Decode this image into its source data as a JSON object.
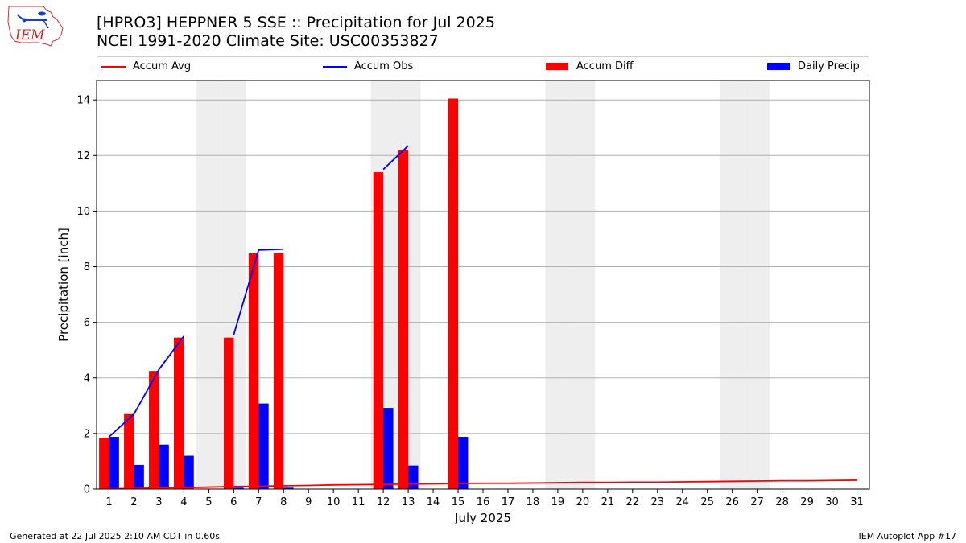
{
  "header": {
    "title_line1": "[HPRO3] HEPPNER 5 SSE :: Precipitation for Jul 2025",
    "title_line2": "NCEI 1991-2020 Climate Site: USC00353827"
  },
  "logo": {
    "text": "IEM"
  },
  "legend": {
    "accum_avg": "Accum Avg",
    "accum_obs": "Accum Obs",
    "accum_diff": "Accum Diff",
    "daily_precip": "Daily Precip"
  },
  "footer": {
    "generated": "Generated at 22 Jul 2025 2:10 AM CDT in 0.60s",
    "app": "IEM Autoplot App #17"
  },
  "colors": {
    "avg_line": "#ff0000",
    "obs_line": "#0000ff",
    "diff_bar": "#ff0000",
    "daily_bar": "#0000ff",
    "weekend_shade": "#eeeeee",
    "grid": "#b0b0b0"
  },
  "chart_data": {
    "type": "bar",
    "xlabel": "July 2025",
    "ylabel": "Precipitation [inch]",
    "ylim": [
      0,
      14.7
    ],
    "yticks": [
      0,
      2,
      4,
      6,
      8,
      10,
      12,
      14
    ],
    "grid": "horizontal",
    "legend_position": "top",
    "days": [
      1,
      2,
      3,
      4,
      5,
      6,
      7,
      8,
      9,
      10,
      11,
      12,
      13,
      14,
      15,
      16,
      17,
      18,
      19,
      20,
      21,
      22,
      23,
      24,
      25,
      26,
      27,
      28,
      29,
      30,
      31
    ],
    "shaded_days": [
      5,
      6,
      12,
      13,
      19,
      20,
      26,
      27
    ],
    "series": [
      {
        "name": "Accum Diff",
        "kind": "bar",
        "values": [
          1.85,
          2.7,
          4.25,
          5.45,
          0,
          5.45,
          8.48,
          8.5,
          0,
          0,
          0,
          11.4,
          12.2,
          0,
          14.05,
          0,
          0,
          0,
          0,
          0,
          0,
          0,
          0,
          0,
          0,
          0,
          0,
          0,
          0,
          0,
          0
        ]
      },
      {
        "name": "Daily Precip",
        "kind": "bar",
        "values": [
          1.88,
          0.87,
          1.6,
          1.2,
          0,
          0.05,
          3.08,
          0.05,
          0,
          0,
          0,
          2.92,
          0.85,
          0,
          1.88,
          0,
          0,
          0,
          0,
          0,
          0,
          0,
          0,
          0,
          0,
          0,
          0,
          0,
          0,
          0,
          0
        ]
      },
      {
        "name": "Accum Obs",
        "kind": "line",
        "segments": [
          {
            "x": [
              1,
              2,
              3,
              4
            ],
            "y": [
              1.88,
              2.7,
              4.3,
              5.5
            ]
          },
          {
            "x": [
              6,
              7,
              8
            ],
            "y": [
              5.55,
              8.6,
              8.63
            ]
          },
          {
            "x": [
              12,
              13
            ],
            "y": [
              11.5,
              12.35
            ]
          }
        ]
      },
      {
        "name": "Accum Avg",
        "kind": "line",
        "x": [
          1,
          2,
          3,
          4,
          5,
          6,
          7,
          8,
          9,
          10,
          11,
          12,
          13,
          14,
          15,
          16,
          17,
          18,
          19,
          20,
          21,
          22,
          23,
          24,
          25,
          26,
          27,
          28,
          29,
          30,
          31
        ],
        "y": [
          0.01,
          0.02,
          0.04,
          0.05,
          0.07,
          0.09,
          0.1,
          0.12,
          0.13,
          0.15,
          0.16,
          0.17,
          0.18,
          0.19,
          0.2,
          0.21,
          0.21,
          0.22,
          0.23,
          0.24,
          0.24,
          0.25,
          0.25,
          0.26,
          0.27,
          0.28,
          0.29,
          0.3,
          0.3,
          0.31,
          0.32
        ]
      }
    ]
  }
}
